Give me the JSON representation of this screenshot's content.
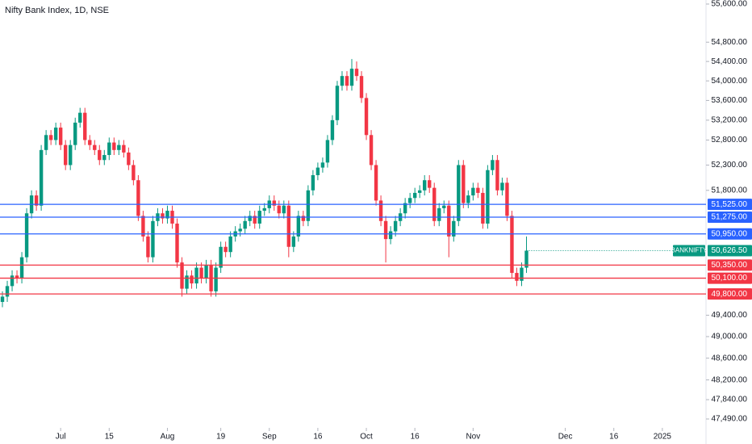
{
  "chart_data": {
    "type": "candlestick",
    "title": "Nifty Bank Index, 1D, NSE",
    "log_scale": true,
    "up_color": "#089981",
    "down_color": "#f23645",
    "open": [
      49650,
      49750,
      49950,
      50150,
      50100,
      50500,
      51350,
      51700,
      51500,
      52600,
      52900,
      52800,
      53050,
      52700,
      52300,
      52700,
      53150,
      53350,
      52800,
      52700,
      52600,
      52400,
      52500,
      52750,
      52600,
      52700,
      52550,
      52300,
      52000,
      51300,
      50900,
      50500,
      51200,
      51350,
      51250,
      51400,
      51150,
      50400,
      49900,
      50150,
      50000,
      50300,
      50100,
      50350,
      49850,
      50300,
      50700,
      50600,
      50900,
      51000,
      51050,
      51200,
      51300,
      51150,
      51400,
      51450,
      51600,
      51500,
      51350,
      51500,
      50700,
      50900,
      51300,
      51200,
      51800,
      52100,
      52250,
      52350,
      52800,
      53200,
      53900,
      54100,
      53900,
      54250,
      54100,
      53650,
      52900,
      52300,
      51600,
      51200,
      50850,
      51000,
      51200,
      51350,
      51550,
      51650,
      51750,
      51800,
      52000,
      51850,
      51200,
      51450,
      51500,
      50900,
      51200,
      52300,
      51550,
      51700,
      51850,
      51750,
      51150,
      52200,
      52400,
      51800,
      51950,
      51300,
      50200,
      50050,
      50300
    ],
    "high": [
      49850,
      50050,
      50250,
      50250,
      50600,
      51450,
      51800,
      51800,
      52700,
      53000,
      53000,
      53150,
      53150,
      52800,
      52800,
      53250,
      53450,
      53450,
      52900,
      52800,
      52700,
      52600,
      52850,
      52850,
      52800,
      52800,
      52650,
      52400,
      52100,
      51400,
      51000,
      51300,
      51450,
      51450,
      51500,
      51500,
      51250,
      50500,
      50250,
      50250,
      50400,
      50400,
      50450,
      50450,
      50400,
      50800,
      50800,
      51000,
      51100,
      51150,
      51300,
      51400,
      51400,
      51500,
      51550,
      51700,
      51700,
      51600,
      51600,
      51600,
      51000,
      51400,
      51400,
      51900,
      52200,
      52350,
      52450,
      52900,
      53300,
      54000,
      54200,
      54200,
      54450,
      54400,
      54200,
      53750,
      53000,
      52400,
      51700,
      51300,
      51100,
      51300,
      51450,
      51650,
      51750,
      51850,
      51900,
      52100,
      52100,
      51950,
      51550,
      51600,
      51600,
      51300,
      52400,
      52400,
      51800,
      51950,
      51950,
      51850,
      52300,
      52500,
      52500,
      52050,
      52050,
      51400,
      50300,
      50400,
      50900
    ],
    "low": [
      49550,
      49650,
      49850,
      50000,
      50000,
      50400,
      51250,
      51400,
      51400,
      52500,
      52700,
      52700,
      52600,
      52200,
      52200,
      52600,
      53050,
      52700,
      52600,
      52500,
      52300,
      52300,
      52400,
      52500,
      52500,
      52450,
      52200,
      51900,
      51200,
      50800,
      50400,
      50400,
      51100,
      51150,
      51150,
      51050,
      50300,
      49750,
      49800,
      49900,
      49900,
      50000,
      50000,
      49750,
      49750,
      50200,
      50500,
      50500,
      50800,
      50900,
      50950,
      51100,
      51050,
      51050,
      51300,
      51350,
      51400,
      51250,
      51250,
      50500,
      50600,
      50800,
      51100,
      51100,
      51700,
      52000,
      52150,
      52250,
      52700,
      53100,
      53800,
      53800,
      53800,
      54000,
      53550,
      52800,
      52200,
      51500,
      51100,
      50400,
      50750,
      50900,
      51100,
      51250,
      51450,
      51550,
      51650,
      51700,
      51750,
      51100,
      51100,
      51350,
      50500,
      50800,
      51100,
      51450,
      51450,
      51600,
      51650,
      51050,
      51050,
      52100,
      51700,
      51700,
      51200,
      50100,
      49950,
      49950,
      50200
    ],
    "close": [
      49750,
      49950,
      50150,
      50100,
      50500,
      51350,
      51700,
      51500,
      52600,
      52900,
      52800,
      53050,
      52700,
      52300,
      52700,
      53150,
      53350,
      52800,
      52700,
      52600,
      52400,
      52500,
      52750,
      52600,
      52700,
      52550,
      52300,
      52000,
      51300,
      50900,
      50500,
      51200,
      51350,
      51250,
      51400,
      51150,
      50400,
      49900,
      50150,
      50000,
      50300,
      50100,
      50350,
      49850,
      50300,
      50700,
      50600,
      50900,
      51000,
      51050,
      51200,
      51300,
      51150,
      51400,
      51450,
      51600,
      51500,
      51350,
      51500,
      50700,
      50900,
      51300,
      51200,
      51800,
      52100,
      52250,
      52350,
      52800,
      53200,
      53900,
      54100,
      53900,
      54250,
      54100,
      53650,
      52900,
      52300,
      51600,
      51200,
      50850,
      51000,
      51200,
      51350,
      51550,
      51650,
      51750,
      51800,
      52000,
      51850,
      51200,
      51450,
      51500,
      50900,
      51200,
      52300,
      51550,
      51700,
      51850,
      51750,
      51150,
      52200,
      52400,
      51800,
      51950,
      51300,
      50200,
      50050,
      50300,
      50626.5
    ],
    "xlim": [
      -0.5,
      145
    ],
    "xticks": [
      {
        "value": 12,
        "label": "Jul"
      },
      {
        "value": 22,
        "label": "15"
      },
      {
        "value": 34,
        "label": "Aug"
      },
      {
        "value": 45,
        "label": "19"
      },
      {
        "value": 55,
        "label": "Sep"
      },
      {
        "value": 65,
        "label": "16"
      },
      {
        "value": 75,
        "label": "Oct"
      },
      {
        "value": 85,
        "label": "16"
      },
      {
        "value": 97,
        "label": "Nov"
      },
      {
        "value": 116,
        "label": "Dec"
      },
      {
        "value": 126,
        "label": "16"
      },
      {
        "value": 136,
        "label": "2025"
      }
    ],
    "ylim": [
      47490,
      55600
    ],
    "yticks": [
      {
        "value": 55600,
        "label": "55,600.00"
      },
      {
        "value": 54800,
        "label": "54,800.00"
      },
      {
        "value": 54400,
        "label": "54,400.00"
      },
      {
        "value": 54000,
        "label": "54,000.00"
      },
      {
        "value": 53600,
        "label": "53,600.00"
      },
      {
        "value": 53200,
        "label": "53,200.00"
      },
      {
        "value": 52800,
        "label": "52,800.00"
      },
      {
        "value": 52300,
        "label": "52,300.00"
      },
      {
        "value": 51800,
        "label": "51,800.00"
      },
      {
        "value": 49400,
        "label": "49,400.00"
      },
      {
        "value": 49000,
        "label": "49,000.00"
      },
      {
        "value": 48600,
        "label": "48,600.00"
      },
      {
        "value": 48200,
        "label": "48,200.00"
      },
      {
        "value": 47840,
        "label": "47,840.00"
      },
      {
        "value": 47490,
        "label": "47,490.00"
      }
    ],
    "levels": [
      {
        "value": 51525,
        "label": "51,525.00",
        "color": "#2962ff"
      },
      {
        "value": 51275,
        "label": "51,275.00",
        "color": "#2962ff"
      },
      {
        "value": 50950,
        "label": "50,950.00",
        "color": "#2962ff"
      },
      {
        "value": 50350,
        "label": "50,350.00",
        "color": "#f23645"
      },
      {
        "value": 50100,
        "label": "50,100.00",
        "color": "#f23645"
      },
      {
        "value": 49800,
        "label": "49,800.00",
        "color": "#f23645"
      }
    ],
    "last_price": {
      "symbol": "BANKNIFTY",
      "value": 50626.5,
      "label": "50,626.50",
      "color": "#089981"
    }
  }
}
